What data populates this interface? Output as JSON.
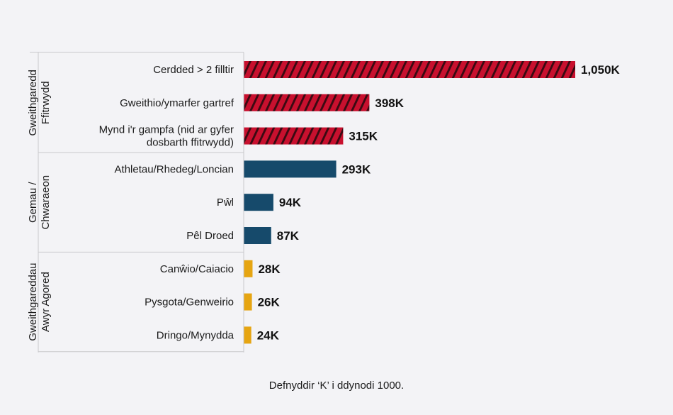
{
  "chart_data": {
    "type": "bar",
    "orientation": "horizontal",
    "groups": [
      {
        "lines": [
          "Gweithgaredd",
          "Ffitrwydd"
        ],
        "color": "#c8102e",
        "pattern": "diagonal-hatch",
        "items": [
          {
            "label": [
              "Cerdded > 2 filltir"
            ],
            "value": 1050,
            "value_label": "1,050K"
          },
          {
            "label": [
              "Gweithio/ymarfer gartref"
            ],
            "value": 398,
            "value_label": "398K"
          },
          {
            "label": [
              "Mynd i'r gampfa (nid ar gyfer",
              "dosbarth ffitrwydd)"
            ],
            "value": 315,
            "value_label": "315K"
          }
        ]
      },
      {
        "lines": [
          "Gemau /",
          "Chwaraeon"
        ],
        "color": "#164a6b",
        "pattern": "solid",
        "items": [
          {
            "label": [
              "Athletau/Rhedeg/Loncian"
            ],
            "value": 293,
            "value_label": "293K"
          },
          {
            "label": [
              "Pŵl"
            ],
            "value": 94,
            "value_label": "94K"
          },
          {
            "label": [
              "Pêl Droed"
            ],
            "value": 87,
            "value_label": "87K"
          }
        ]
      },
      {
        "lines": [
          "Gweithgareddau",
          "Awyr Agored"
        ],
        "color": "#e6a512",
        "pattern": "solid",
        "items": [
          {
            "label": [
              "Canŵio/Caiacio"
            ],
            "value": 28,
            "value_label": "28K"
          },
          {
            "label": [
              "Pysgota/Genweirio"
            ],
            "value": 26,
            "value_label": "26K"
          },
          {
            "label": [
              "Dringo/Mynydda"
            ],
            "value": 24,
            "value_label": "24K"
          }
        ]
      }
    ],
    "xlim": [
      0,
      1050
    ],
    "footnote": "Defnyddir ‘K’ i ddynodi 1000."
  }
}
